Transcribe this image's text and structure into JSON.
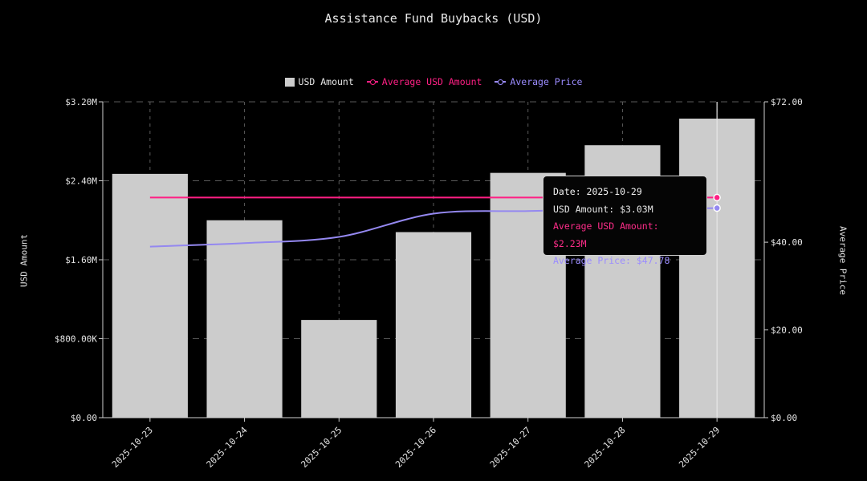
{
  "chart_data": {
    "type": "bar",
    "title": "Assistance Fund Buybacks (USD)",
    "categories": [
      "2025-10-23",
      "2025-10-24",
      "2025-10-25",
      "2025-10-26",
      "2025-10-27",
      "2025-10-28",
      "2025-10-29"
    ],
    "series": [
      {
        "name": "USD Amount",
        "type": "bar",
        "axis": "left",
        "color": "#cccccc",
        "values": [
          2470000,
          2000000,
          990000,
          1880000,
          2480000,
          2760000,
          3030000
        ]
      },
      {
        "name": "Average USD Amount",
        "type": "line",
        "axis": "left",
        "color": "#ff1f84",
        "values": [
          2230000,
          2230000,
          2230000,
          2230000,
          2230000,
          2230000,
          2230000
        ]
      },
      {
        "name": "Average Price",
        "type": "line",
        "axis": "right",
        "color": "#9488f0",
        "values": [
          39.0,
          39.8,
          41.2,
          46.5,
          47.1,
          47.5,
          47.78
        ]
      }
    ],
    "ylabel": "USD Amount",
    "y2label": "Average Price",
    "ylim": [
      0,
      3200000
    ],
    "y2lim": [
      0,
      72
    ],
    "yticks": [
      "$0.00",
      "$800.00K",
      "$1.60M",
      "$2.40M",
      "$3.20M"
    ],
    "y2ticks": [
      "$0.00",
      "$20.00",
      "$40.00",
      "$72.00"
    ],
    "y2tick_values": [
      0,
      20,
      40,
      72
    ],
    "grid": true,
    "legend_position": "top-center"
  },
  "legend": {
    "usd_amount": "USD Amount",
    "average_usd_amount": "Average USD Amount",
    "average_price": "Average Price"
  },
  "tooltip": {
    "date": "Date: 2025-10-29",
    "usd_amount": "USD Amount: $3.03M",
    "average_usd_amount": "Average USD Amount: $2.23M",
    "average_price": "Average Price: $47.78"
  },
  "colors": {
    "background": "#000000",
    "bar": "#cccccc",
    "avg_usd_line": "#ff1f84",
    "avg_price_line": "#9488f0"
  }
}
